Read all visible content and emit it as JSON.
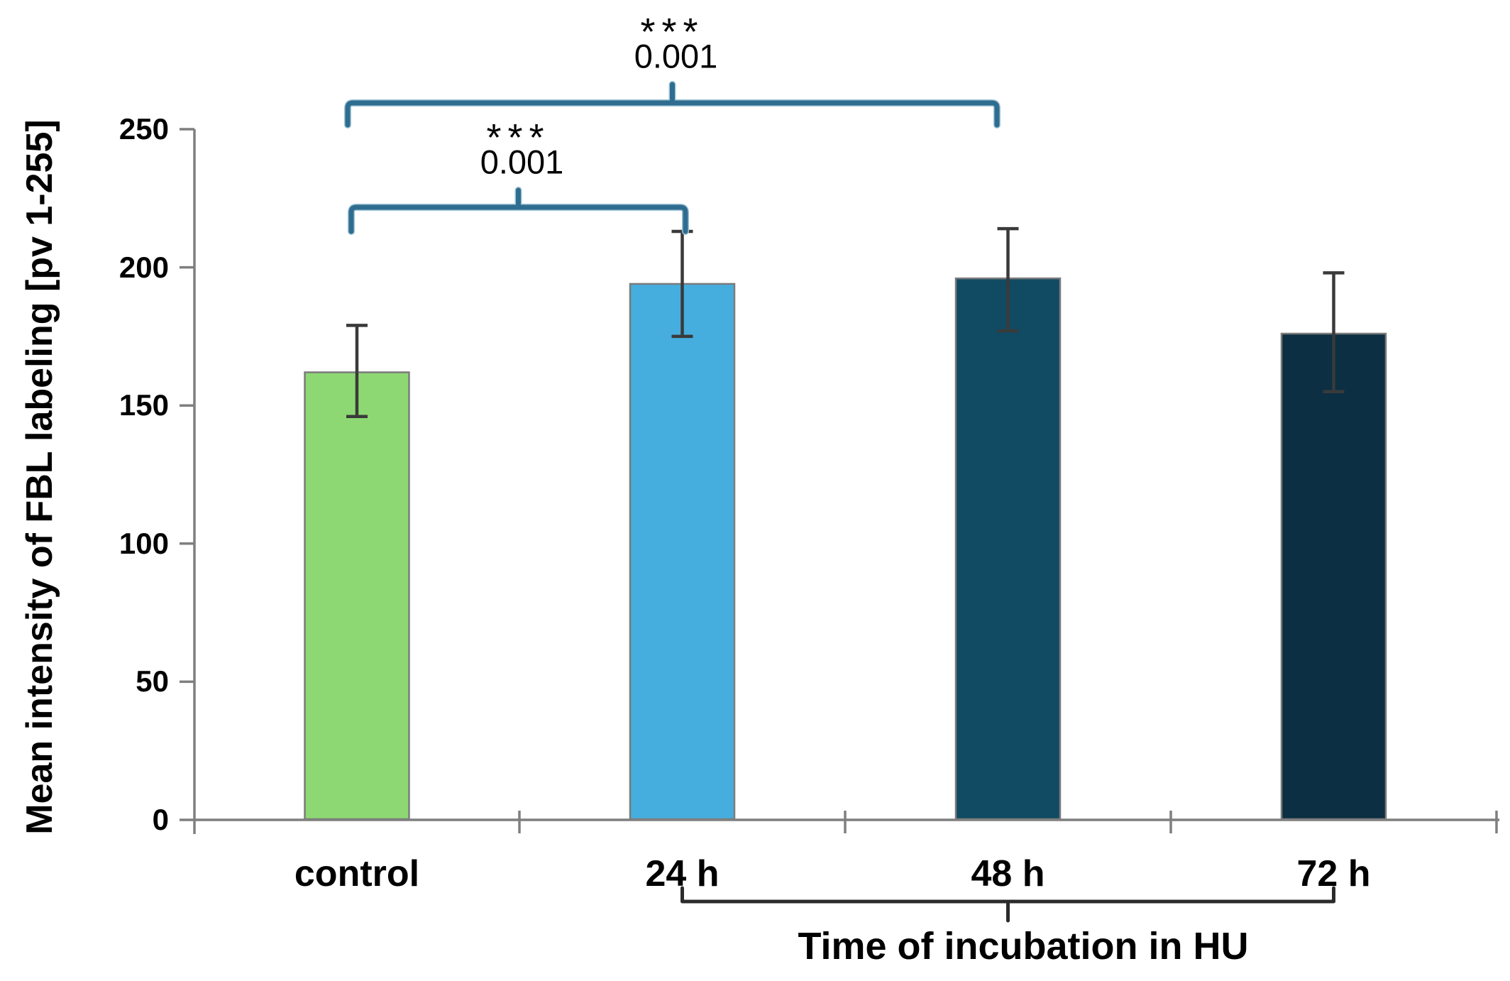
{
  "chart_data": {
    "type": "bar",
    "title": "",
    "ylabel": "Mean intensity of FBL labeling [pv 1-255]",
    "ylim": [
      0,
      250
    ],
    "yticks": [
      0,
      50,
      100,
      150,
      200,
      250
    ],
    "categories": [
      "control",
      "24 h",
      "48 h",
      "72 h"
    ],
    "values": [
      162,
      194,
      196,
      176
    ],
    "error_upper": [
      179,
      213,
      214,
      198
    ],
    "error_lower": [
      146,
      175,
      177,
      155
    ],
    "bar_colors": [
      "#8dd873",
      "#45aede",
      "#114a63",
      "#0c2f43"
    ],
    "bar_border_color": "#7b7b7b",
    "axis_color": "#7f7f7f",
    "error_bar_color": "#3a3a3a",
    "grid": "off",
    "legend": "none",
    "significance_brackets": [
      {
        "from": "control",
        "to": "24 h",
        "stars": "***",
        "p_value": "0.001",
        "color": "#2f6d90"
      },
      {
        "from": "control",
        "to": "48 h",
        "stars": "***",
        "p_value": "0.001",
        "color": "#2f6d90"
      }
    ],
    "x_range_bracket": {
      "label": "Time of incubation in HU",
      "from": "24 h",
      "to": "72 h",
      "color": "#2b2b2b"
    }
  }
}
